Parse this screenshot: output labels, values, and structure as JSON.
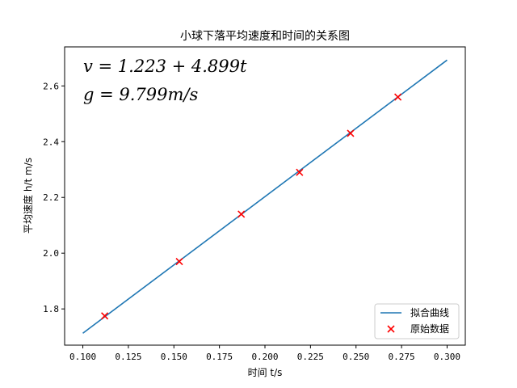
{
  "chart_data": {
    "type": "scatter",
    "title": "小球下落平均速度和时间的关系图",
    "xlabel": "时间 t/s",
    "ylabel": "平均速度 h/t m/s",
    "xlim": [
      0.09,
      0.31
    ],
    "ylim": [
      1.67,
      2.74
    ],
    "xticks": [
      0.1,
      0.125,
      0.15,
      0.175,
      0.2,
      0.225,
      0.25,
      0.275,
      0.3
    ],
    "xtick_labels": [
      "0.100",
      "0.125",
      "0.150",
      "0.175",
      "0.200",
      "0.225",
      "0.250",
      "0.275",
      "0.300"
    ],
    "yticks": [
      1.8,
      2.0,
      2.2,
      2.4,
      2.6
    ],
    "ytick_labels": [
      "1.8",
      "2.0",
      "2.2",
      "2.4",
      "2.6"
    ],
    "grid": false,
    "legend": {
      "placement": "lower-right",
      "entries": [
        "拟合曲线",
        "原始数据"
      ]
    },
    "annotations": [
      "v = 1.223 + 4.899t",
      "g = 9.799m/s"
    ],
    "fit_line": {
      "name": "拟合曲线",
      "intercept": 1.223,
      "slope": 4.899,
      "x_range": [
        0.1,
        0.3
      ],
      "color": "#1f77b4"
    },
    "series": [
      {
        "name": "原始数据",
        "marker": "x",
        "color": "#ff0000",
        "points": [
          {
            "x": 0.112,
            "y": 1.775
          },
          {
            "x": 0.153,
            "y": 1.97
          },
          {
            "x": 0.187,
            "y": 2.14
          },
          {
            "x": 0.219,
            "y": 2.29
          },
          {
            "x": 0.247,
            "y": 2.43
          },
          {
            "x": 0.273,
            "y": 2.56
          }
        ]
      }
    ]
  }
}
